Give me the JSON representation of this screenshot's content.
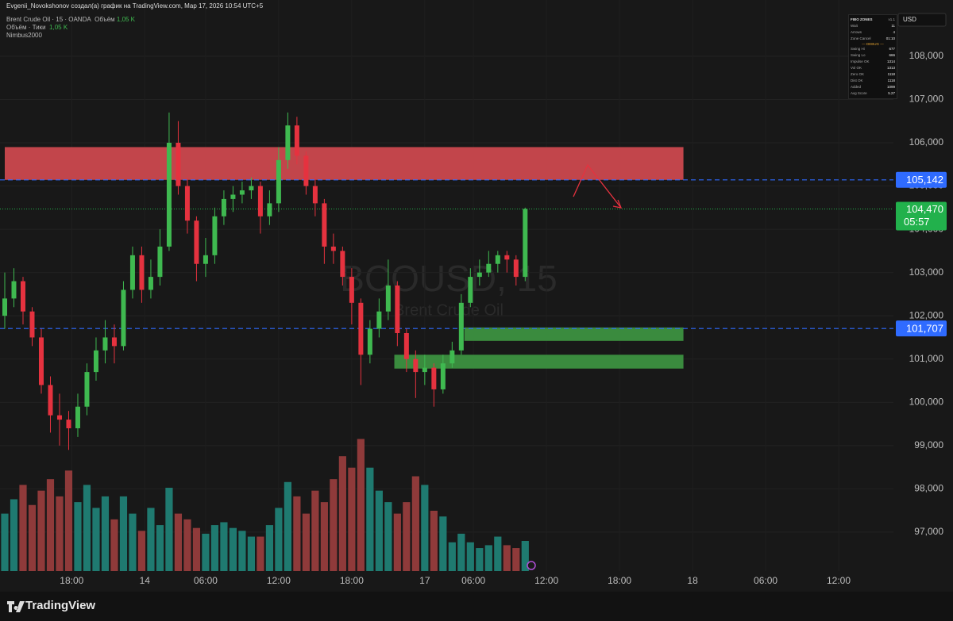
{
  "header": {
    "attribution": "Evgenii_Novokshonov создал(а) график на TradingView.com, Мар 17, 2026 10:54 UTC+5",
    "symbol_line": "Brent Crude Oil · 15 · OANDA",
    "symbol_volume_label": "Объём",
    "symbol_volume": "1,05 K",
    "volume_line": "Объём · Тики",
    "volume_value": "1,05 K",
    "indicator": "Nimbus2000",
    "currency": "USD"
  },
  "fibo_table": {
    "title": "FIBO ZONES",
    "version": "v1.1",
    "rows": [
      [
        "Wait",
        "11"
      ],
      [
        "Arrows",
        "4"
      ],
      [
        "Zone Cancel",
        "01:10"
      ]
    ],
    "debug_title": "— DEBUG —",
    "debug_rows": [
      [
        "Swing Hi",
        "677"
      ],
      [
        "Swing Lo",
        "666"
      ],
      [
        "Impulse OK",
        "1314"
      ],
      [
        "Vol OK",
        "1313"
      ],
      [
        "Zero OK",
        "1118"
      ],
      [
        "Dist OK",
        "1118"
      ],
      [
        "Added",
        "1099"
      ],
      [
        "Avg Score",
        "5.27"
      ]
    ]
  },
  "chart_data": {
    "type": "candlestick",
    "watermark": "BCOUSD, 15",
    "watermark_sub": "Brent Crude Oil",
    "up_color": "#3fb950",
    "down_color": "#e5323f",
    "volume_up_color": "#1f7a70",
    "volume_down_color": "#8f3a3a",
    "x": [
      0,
      3,
      6,
      9,
      12,
      15,
      18,
      21,
      24,
      27,
      30,
      33,
      36,
      39,
      42,
      45,
      48,
      51,
      54,
      57,
      60,
      63,
      66,
      69,
      72,
      75,
      78,
      81,
      84,
      87,
      90,
      93,
      96,
      99,
      102,
      105,
      108,
      111,
      114,
      117,
      120,
      123,
      126,
      129,
      132,
      135,
      138,
      141,
      144,
      147,
      150,
      153,
      156,
      159,
      162,
      165,
      168,
      171
    ],
    "open": [
      102000,
      102400,
      102800,
      102100,
      101500,
      100400,
      99700,
      99600,
      99400,
      99900,
      100700,
      101200,
      101500,
      101300,
      102600,
      103400,
      102600,
      102900,
      103600,
      106000,
      105000,
      104200,
      103200,
      103400,
      104300,
      104700,
      104800,
      104900,
      105000,
      104300,
      104600,
      105600,
      106400,
      105700,
      105000,
      104600,
      103600,
      103500,
      102900,
      102300,
      101100,
      101700,
      102100,
      102700,
      101600,
      101000,
      100700,
      100800,
      100300,
      100900,
      101200,
      102300,
      102900,
      103000,
      103200,
      103400,
      103300,
      102900
    ],
    "high": [
      103000,
      103100,
      102900,
      102200,
      101700,
      100600,
      100200,
      99800,
      100200,
      100900,
      101500,
      101900,
      101800,
      102800,
      103600,
      103600,
      103300,
      104000,
      106700,
      106500,
      105200,
      104300,
      103800,
      104500,
      104900,
      105000,
      105100,
      105200,
      105100,
      104900,
      105900,
      106700,
      106600,
      105800,
      105200,
      104700,
      103900,
      103600,
      103100,
      102400,
      101900,
      102400,
      103300,
      102800,
      101700,
      101200,
      101100,
      100900,
      101100,
      101400,
      102500,
      103100,
      103300,
      103500,
      103500,
      103500,
      103400,
      104500
    ],
    "low": [
      101700,
      102200,
      101800,
      101300,
      100200,
      99300,
      99000,
      98900,
      99200,
      99700,
      100500,
      100900,
      100900,
      101200,
      102400,
      102300,
      102400,
      102700,
      103500,
      104800,
      103900,
      102800,
      102900,
      103200,
      104100,
      104400,
      104600,
      104700,
      103900,
      104100,
      104400,
      105400,
      105500,
      104800,
      104300,
      103200,
      103200,
      102700,
      101800,
      100400,
      100900,
      101500,
      101900,
      101300,
      100700,
      100100,
      100400,
      99900,
      100200,
      100800,
      101100,
      102200,
      102700,
      102900,
      103000,
      103000,
      102700,
      102800
    ],
    "close": [
      102400,
      102800,
      102100,
      101500,
      100400,
      99700,
      99600,
      99400,
      99900,
      100700,
      101200,
      101500,
      101300,
      102600,
      103400,
      102600,
      102900,
      103600,
      106000,
      105000,
      104200,
      103200,
      103400,
      104300,
      104700,
      104800,
      104900,
      105000,
      104300,
      104600,
      105600,
      106400,
      105700,
      105000,
      104600,
      103600,
      103500,
      102900,
      102300,
      101100,
      101700,
      102100,
      102700,
      101600,
      101000,
      100700,
      100800,
      100300,
      100900,
      101200,
      102300,
      102900,
      103000,
      103200,
      103400,
      103300,
      102900,
      104470
    ],
    "volume": [
      2.0,
      2.5,
      3.0,
      2.3,
      2.8,
      3.2,
      2.6,
      3.5,
      2.4,
      3.0,
      2.2,
      2.6,
      1.8,
      2.6,
      2.0,
      1.4,
      2.2,
      1.6,
      2.9,
      2.0,
      1.8,
      1.5,
      1.3,
      1.6,
      1.7,
      1.5,
      1.4,
      1.2,
      1.2,
      1.6,
      2.2,
      3.1,
      2.6,
      2.0,
      2.8,
      2.4,
      3.2,
      4.0,
      3.6,
      4.6,
      3.6,
      2.8,
      2.4,
      2.0,
      2.4,
      3.3,
      3.0,
      2.1,
      1.9,
      1.0,
      1.3,
      1.0,
      0.8,
      0.9,
      1.2,
      0.9,
      0.8,
      1.05
    ],
    "vlim": [
      0,
      5
    ],
    "xlim": [
      0,
      292
    ],
    "ylim": [
      96100,
      109300
    ],
    "xticks": [
      {
        "value": 22,
        "label": "18:00"
      },
      {
        "value": 46,
        "label": "14"
      },
      {
        "value": 66,
        "label": "06:00"
      },
      {
        "value": 90,
        "label": "12:00"
      },
      {
        "value": 114,
        "label": "18:00"
      },
      {
        "value": 138,
        "label": "17"
      },
      {
        "value": 154,
        "label": "06:00"
      },
      {
        "value": 178,
        "label": "12:00"
      },
      {
        "value": 202,
        "label": "18:00"
      },
      {
        "value": 226,
        "label": "18"
      },
      {
        "value": 250,
        "label": "06:00"
      },
      {
        "value": 274,
        "label": "12:00"
      }
    ],
    "yticks": [
      {
        "value": 97000,
        "label": "97,000"
      },
      {
        "value": 98000,
        "label": "98,000"
      },
      {
        "value": 99000,
        "label": "99,000"
      },
      {
        "value": 100000,
        "label": "100,000"
      },
      {
        "value": 101000,
        "label": "101,000"
      },
      {
        "value": 102000,
        "label": "102,000"
      },
      {
        "value": 103000,
        "label": "103,000"
      },
      {
        "value": 104000,
        "label": "104,000"
      },
      {
        "value": 105000,
        "label": "105,000"
      },
      {
        "value": 106000,
        "label": "106,000"
      },
      {
        "value": 107000,
        "label": "107,000"
      },
      {
        "value": 108000,
        "label": "108,000"
      }
    ],
    "zones": [
      {
        "from": 0,
        "to": 223,
        "low": 105142,
        "high": 105900,
        "color": "#d94b52"
      },
      {
        "from": 151,
        "to": 223,
        "low": 101420,
        "high": 101730,
        "color": "#3f9b43"
      },
      {
        "from": 128,
        "to": 223,
        "low": 100780,
        "high": 101100,
        "color": "#3f9b43"
      }
    ],
    "levels": [
      {
        "value": 105142,
        "label": "105,142",
        "color": "#2f6bff"
      },
      {
        "value": 101707,
        "label": "101,707",
        "color": "#2f6bff"
      }
    ],
    "last_price": {
      "value": 104470,
      "label": "104,470",
      "countdown": "05:57",
      "color": "#22b14c"
    }
  },
  "footer": {
    "brand": "TradingView"
  }
}
